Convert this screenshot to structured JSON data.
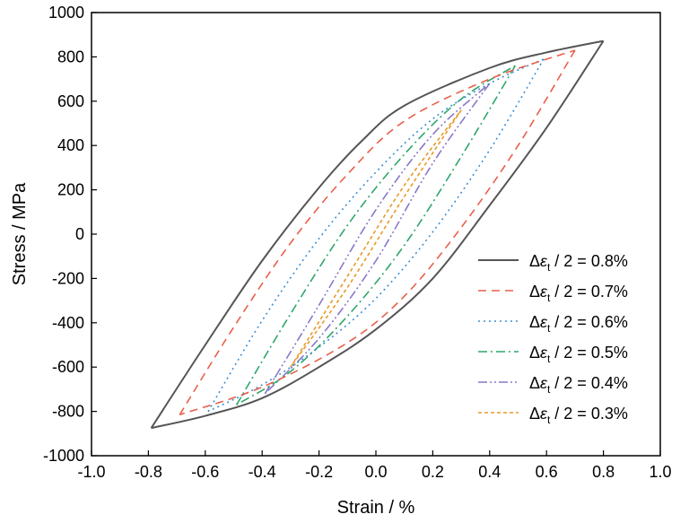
{
  "chart_data": {
    "type": "line",
    "title": "",
    "xlabel": "Strain / %",
    "ylabel": "Stress / MPa",
    "xlim": [
      -1.0,
      1.0
    ],
    "ylim": [
      -1000,
      1000
    ],
    "xticks": [
      "-1.0",
      "-0.8",
      "-0.6",
      "-0.4",
      "-0.2",
      "0.0",
      "0.2",
      "0.4",
      "0.6",
      "0.8",
      "1.0"
    ],
    "yticks": [
      "-1000",
      "-800",
      "-600",
      "-400",
      "-200",
      "0",
      "200",
      "400",
      "600",
      "800",
      "1000"
    ],
    "grid": false,
    "legend_position": "lower-right",
    "series": [
      {
        "name": "Δεt / 2 = 0.8%",
        "legend_parts": [
          "Δ",
          "ε",
          "t",
          " / 2 = 0.8%"
        ],
        "color": "#555555",
        "dash": "solid",
        "amplitude": 0.8,
        "peak": 872,
        "upper": [
          [
            -0.79,
            -875
          ],
          [
            -0.6,
            -500
          ],
          [
            -0.4,
            -120
          ],
          [
            -0.2,
            210
          ],
          [
            -0.05,
            420
          ],
          [
            0.1,
            580
          ],
          [
            0.4,
            750
          ],
          [
            0.6,
            820
          ],
          [
            0.8,
            872
          ]
        ],
        "lower": [
          [
            0.8,
            872
          ],
          [
            0.6,
            480
          ],
          [
            0.4,
            130
          ],
          [
            0.2,
            -200
          ],
          [
            0.0,
            -430
          ],
          [
            -0.2,
            -600
          ],
          [
            -0.4,
            -740
          ],
          [
            -0.6,
            -820
          ],
          [
            -0.79,
            -875
          ]
        ]
      },
      {
        "name": "Δεt / 2 = 0.7%",
        "legend_parts": [
          "Δ",
          "ε",
          "t",
          " / 2 = 0.7%"
        ],
        "color": "#e8604a",
        "dash": "dashed",
        "amplitude": 0.7,
        "peak": 830,
        "upper": [
          [
            -0.69,
            -815
          ],
          [
            -0.5,
            -420
          ],
          [
            -0.3,
            -40
          ],
          [
            -0.1,
            270
          ],
          [
            0.1,
            510
          ],
          [
            0.4,
            700
          ],
          [
            0.7,
            830
          ]
        ],
        "lower": [
          [
            0.7,
            830
          ],
          [
            0.5,
            400
          ],
          [
            0.3,
            30
          ],
          [
            0.1,
            -280
          ],
          [
            -0.1,
            -490
          ],
          [
            -0.4,
            -690
          ],
          [
            -0.69,
            -815
          ]
        ]
      },
      {
        "name": "Δεt / 2 = 0.6%",
        "legend_parts": [
          "Δ",
          "ε",
          "t",
          " / 2 = 0.6%"
        ],
        "color": "#3d8fd6",
        "dash": "dotted",
        "amplitude": 0.6,
        "peak": 790,
        "upper": [
          [
            -0.59,
            -800
          ],
          [
            -0.4,
            -390
          ],
          [
            -0.2,
            -20
          ],
          [
            0.0,
            280
          ],
          [
            0.2,
            520
          ],
          [
            0.4,
            680
          ],
          [
            0.59,
            790
          ]
        ],
        "lower": [
          [
            0.59,
            790
          ],
          [
            0.4,
            380
          ],
          [
            0.2,
            10
          ],
          [
            0.0,
            -290
          ],
          [
            -0.2,
            -510
          ],
          [
            -0.4,
            -680
          ],
          [
            -0.59,
            -800
          ]
        ]
      },
      {
        "name": "Δεt / 2 = 0.5%",
        "legend_parts": [
          "Δ",
          "ε",
          "t",
          " / 2 = 0.5%"
        ],
        "color": "#2fa66b",
        "dash": "dashdot",
        "amplitude": 0.5,
        "peak": 760,
        "upper": [
          [
            -0.49,
            -770
          ],
          [
            -0.3,
            -360
          ],
          [
            -0.1,
            40
          ],
          [
            0.1,
            360
          ],
          [
            0.3,
            610
          ],
          [
            0.49,
            760
          ]
        ],
        "lower": [
          [
            0.49,
            760
          ],
          [
            0.3,
            350
          ],
          [
            0.1,
            -50
          ],
          [
            -0.1,
            -370
          ],
          [
            -0.3,
            -620
          ],
          [
            -0.49,
            -770
          ]
        ]
      },
      {
        "name": "Δεt / 2 = 0.4%",
        "legend_parts": [
          "Δ",
          "ε",
          "t",
          " / 2 = 0.4%"
        ],
        "color": "#8a78c8",
        "dash": "dashdotdot",
        "amplitude": 0.4,
        "peak": 680,
        "upper": [
          [
            -0.39,
            -720
          ],
          [
            -0.2,
            -320
          ],
          [
            0.0,
            110
          ],
          [
            0.2,
            450
          ],
          [
            0.4,
            680
          ]
        ],
        "lower": [
          [
            0.4,
            680
          ],
          [
            0.2,
            320
          ],
          [
            0.0,
            -120
          ],
          [
            -0.2,
            -470
          ],
          [
            -0.39,
            -720
          ]
        ]
      },
      {
        "name": "Δεt / 2 = 0.3%",
        "legend_parts": [
          "Δ",
          "ε",
          "t",
          " / 2 = 0.3%"
        ],
        "color": "#e89a2a",
        "dash": "shortdash",
        "amplitude": 0.3,
        "peak": 560,
        "upper": [
          [
            -0.3,
            -600
          ],
          [
            -0.1,
            -190
          ],
          [
            0.1,
            220
          ],
          [
            0.3,
            560
          ]
        ],
        "lower": [
          [
            0.3,
            560
          ],
          [
            0.1,
            170
          ],
          [
            -0.1,
            -240
          ],
          [
            -0.3,
            -600
          ]
        ]
      }
    ]
  }
}
